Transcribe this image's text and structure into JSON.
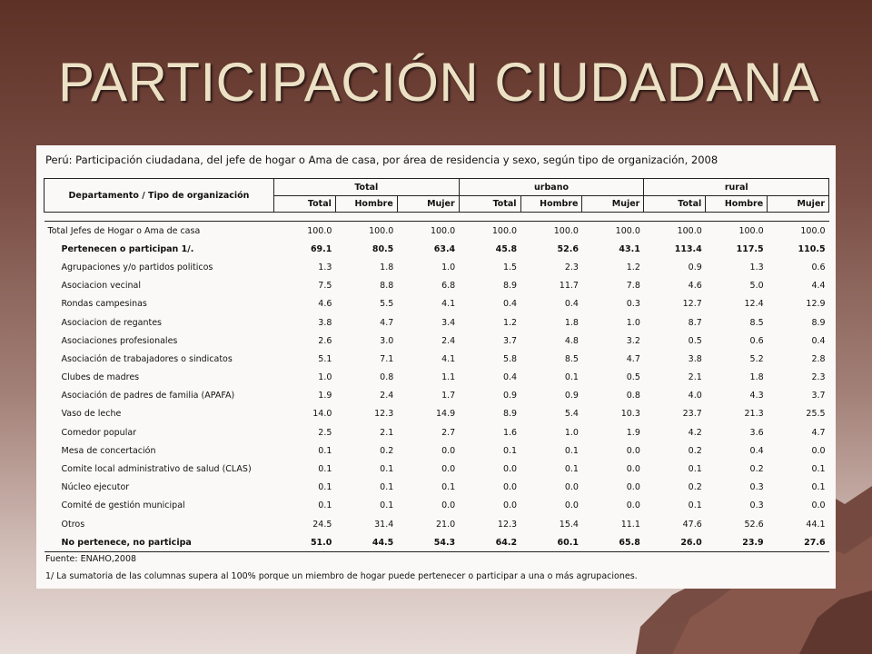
{
  "slide": {
    "title": "PARTICIPACIÓN CIUDADANA",
    "colors": {
      "title": "#ece1c5",
      "background_top": "#5e3127",
      "background_bottom": "#e8dcd8",
      "mountain": "#6b3e34"
    }
  },
  "table": {
    "subtitle": "Perú: Participación ciudadana, del jefe de hogar o Ama de casa, por área de residencia y sexo, según tipo de organización, 2008",
    "row_header": "Departamento / Tipo de organización",
    "groups": [
      "Total",
      "urbano",
      "rural"
    ],
    "subcolumns": [
      "Total",
      "Hombre",
      "Mujer",
      "Total",
      "Hombre",
      "Mujer",
      "Total",
      "Hombre",
      "Mujer"
    ],
    "rows": [
      {
        "label": "Total Jefes de Hogar o Ama de casa",
        "values": [
          "100.0",
          "100.0",
          "100.0",
          "100.0",
          "100.0",
          "100.0",
          "100.0",
          "100.0",
          "100.0"
        ]
      },
      {
        "label": "Pertenecen  o participan 1/.",
        "values": [
          "69.1",
          "80.5",
          "63.4",
          "45.8",
          "52.6",
          "43.1",
          "113.4",
          "117.5",
          "110.5"
        ]
      },
      {
        "label": "Agrupaciones y/o partidos politicos",
        "values": [
          "1.3",
          "1.8",
          "1.0",
          "1.5",
          "2.3",
          "1.2",
          "0.9",
          "1.3",
          "0.6"
        ]
      },
      {
        "label": "Asociacion vecinal",
        "values": [
          "7.5",
          "8.8",
          "6.8",
          "8.9",
          "11.7",
          "7.8",
          "4.6",
          "5.0",
          "4.4"
        ]
      },
      {
        "label": "Rondas campesinas",
        "values": [
          "4.6",
          "5.5",
          "4.1",
          "0.4",
          "0.4",
          "0.3",
          "12.7",
          "12.4",
          "12.9"
        ]
      },
      {
        "label": "Asociacion de regantes",
        "values": [
          "3.8",
          "4.7",
          "3.4",
          "1.2",
          "1.8",
          "1.0",
          "8.7",
          "8.5",
          "8.9"
        ]
      },
      {
        "label": "Asociaciones profesionales",
        "values": [
          "2.6",
          "3.0",
          "2.4",
          "3.7",
          "4.8",
          "3.2",
          "0.5",
          "0.6",
          "0.4"
        ]
      },
      {
        "label": "Asociación de trabajadores o sindicatos",
        "values": [
          "5.1",
          "7.1",
          "4.1",
          "5.8",
          "8.5",
          "4.7",
          "3.8",
          "5.2",
          "2.8"
        ]
      },
      {
        "label": "Clubes de madres",
        "values": [
          "1.0",
          "0.8",
          "1.1",
          "0.4",
          "0.1",
          "0.5",
          "2.1",
          "1.8",
          "2.3"
        ]
      },
      {
        "label": "Asociación de padres de familia (APAFA)",
        "values": [
          "1.9",
          "2.4",
          "1.7",
          "0.9",
          "0.9",
          "0.8",
          "4.0",
          "4.3",
          "3.7"
        ]
      },
      {
        "label": "Vaso de leche",
        "values": [
          "14.0",
          "12.3",
          "14.9",
          "8.9",
          "5.4",
          "10.3",
          "23.7",
          "21.3",
          "25.5"
        ]
      },
      {
        "label": "Comedor popular",
        "values": [
          "2.5",
          "2.1",
          "2.7",
          "1.6",
          "1.0",
          "1.9",
          "4.2",
          "3.6",
          "4.7"
        ]
      },
      {
        "label": "Mesa de concertación",
        "values": [
          "0.1",
          "0.2",
          "0.0",
          "0.1",
          "0.1",
          "0.0",
          "0.2",
          "0.4",
          "0.0"
        ]
      },
      {
        "label": "Comite local administrativo de salud (CLAS)",
        "values": [
          "0.1",
          "0.1",
          "0.0",
          "0.0",
          "0.1",
          "0.0",
          "0.1",
          "0.2",
          "0.1"
        ]
      },
      {
        "label": "Núcleo ejecutor",
        "values": [
          "0.1",
          "0.1",
          "0.1",
          "0.0",
          "0.0",
          "0.0",
          "0.2",
          "0.3",
          "0.1"
        ]
      },
      {
        "label": "Comité de gestión municipal",
        "values": [
          "0.1",
          "0.1",
          "0.0",
          "0.0",
          "0.0",
          "0.0",
          "0.1",
          "0.3",
          "0.0"
        ]
      },
      {
        "label": "Otros",
        "values": [
          "24.5",
          "31.4",
          "21.0",
          "12.3",
          "15.4",
          "11.1",
          "47.6",
          "52.6",
          "44.1"
        ]
      },
      {
        "label": "No pertenece, no participa",
        "values": [
          "51.0",
          "44.5",
          "54.3",
          "64.2",
          "60.1",
          "65.8",
          "26.0",
          "23.9",
          "27.6"
        ]
      }
    ],
    "source": "Fuente: ENAHO,2008",
    "note": "1/ La sumatoria de las columnas supera al 100% porque un miembro de hogar puede pertenecer o participar a una o más agrupaciones."
  }
}
